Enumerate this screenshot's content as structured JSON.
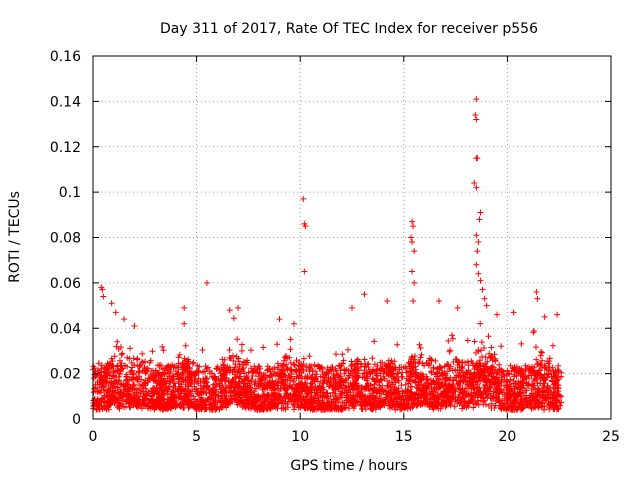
{
  "chart_data": {
    "type": "scatter",
    "title": "Day 311 of 2017, Rate Of TEC Index for receiver p556",
    "xlabel": "GPS time / hours",
    "ylabel": "ROTI / TECUs",
    "xlim": [
      0,
      25
    ],
    "ylim": [
      0,
      0.16
    ],
    "xticks": [
      0,
      5,
      10,
      15,
      20,
      25
    ],
    "yticks": [
      0,
      0.02,
      0.04,
      0.06,
      0.08,
      0.1,
      0.12,
      0.14,
      0.16
    ],
    "xtick_labels": [
      "0",
      "5",
      "10",
      "15",
      "20",
      "25"
    ],
    "ytick_labels": [
      "0",
      "0.02",
      "0.04",
      "0.06",
      "0.08",
      "0.1",
      "0.12",
      "0.14",
      "0.16"
    ],
    "grid": true,
    "marker": "+",
    "color": "#ff0000",
    "x_data_range": [
      0.0,
      22.6
    ],
    "baseline_band": [
      0.004,
      0.03
    ],
    "notable_points": [
      {
        "x": 0.4,
        "y": 0.058
      },
      {
        "x": 0.45,
        "y": 0.057
      },
      {
        "x": 0.5,
        "y": 0.054
      },
      {
        "x": 0.9,
        "y": 0.051
      },
      {
        "x": 1.1,
        "y": 0.047
      },
      {
        "x": 1.5,
        "y": 0.044
      },
      {
        "x": 2.0,
        "y": 0.041
      },
      {
        "x": 4.4,
        "y": 0.049
      },
      {
        "x": 4.4,
        "y": 0.042
      },
      {
        "x": 5.5,
        "y": 0.06
      },
      {
        "x": 6.6,
        "y": 0.048
      },
      {
        "x": 7.0,
        "y": 0.049
      },
      {
        "x": 9.0,
        "y": 0.044
      },
      {
        "x": 9.7,
        "y": 0.042
      },
      {
        "x": 10.15,
        "y": 0.097
      },
      {
        "x": 10.2,
        "y": 0.086
      },
      {
        "x": 10.25,
        "y": 0.085
      },
      {
        "x": 10.2,
        "y": 0.065
      },
      {
        "x": 12.5,
        "y": 0.049
      },
      {
        "x": 13.1,
        "y": 0.055
      },
      {
        "x": 14.2,
        "y": 0.052
      },
      {
        "x": 15.4,
        "y": 0.087
      },
      {
        "x": 15.45,
        "y": 0.085
      },
      {
        "x": 15.35,
        "y": 0.08
      },
      {
        "x": 15.4,
        "y": 0.078
      },
      {
        "x": 15.5,
        "y": 0.074
      },
      {
        "x": 15.4,
        "y": 0.065
      },
      {
        "x": 15.5,
        "y": 0.06
      },
      {
        "x": 15.45,
        "y": 0.052
      },
      {
        "x": 16.7,
        "y": 0.052
      },
      {
        "x": 17.6,
        "y": 0.049
      },
      {
        "x": 18.5,
        "y": 0.141
      },
      {
        "x": 18.45,
        "y": 0.134
      },
      {
        "x": 18.5,
        "y": 0.132
      },
      {
        "x": 18.5,
        "y": 0.115
      },
      {
        "x": 18.55,
        "y": 0.115
      },
      {
        "x": 18.4,
        "y": 0.104
      },
      {
        "x": 18.5,
        "y": 0.102
      },
      {
        "x": 18.7,
        "y": 0.091
      },
      {
        "x": 18.65,
        "y": 0.088
      },
      {
        "x": 18.5,
        "y": 0.081
      },
      {
        "x": 18.6,
        "y": 0.078
      },
      {
        "x": 18.55,
        "y": 0.074
      },
      {
        "x": 18.5,
        "y": 0.068
      },
      {
        "x": 18.6,
        "y": 0.064
      },
      {
        "x": 18.7,
        "y": 0.061
      },
      {
        "x": 18.8,
        "y": 0.057
      },
      {
        "x": 18.9,
        "y": 0.053
      },
      {
        "x": 19.0,
        "y": 0.05
      },
      {
        "x": 19.5,
        "y": 0.046
      },
      {
        "x": 20.3,
        "y": 0.047
      },
      {
        "x": 21.4,
        "y": 0.056
      },
      {
        "x": 21.45,
        "y": 0.053
      },
      {
        "x": 21.8,
        "y": 0.045
      },
      {
        "x": 22.4,
        "y": 0.046
      }
    ]
  }
}
